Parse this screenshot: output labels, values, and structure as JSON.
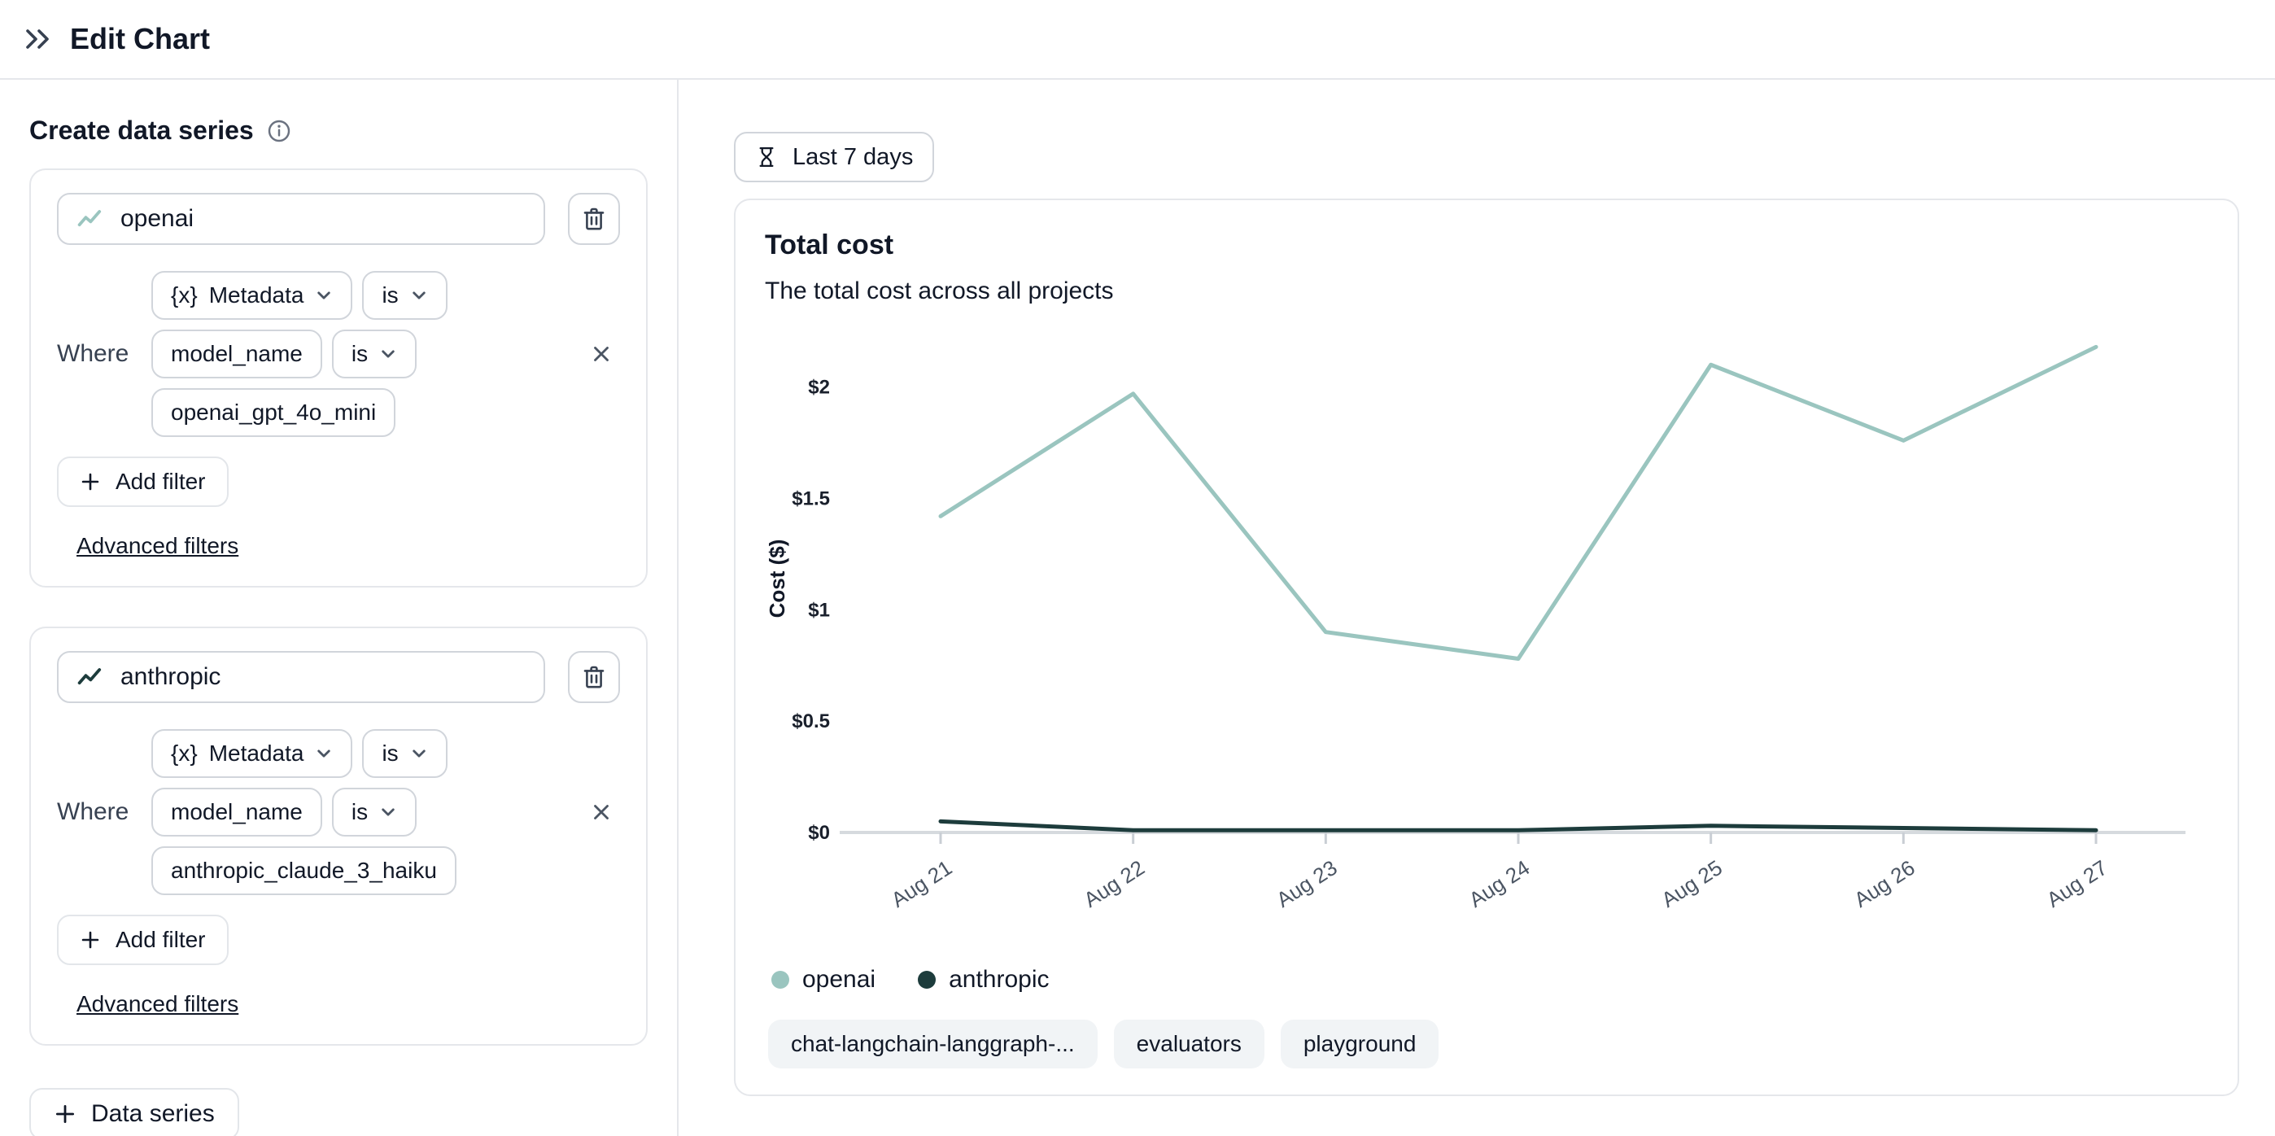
{
  "header": {
    "title": "Edit Chart"
  },
  "sidebar": {
    "heading": "Create data series",
    "labels": {
      "where": "Where",
      "add_filter": "Add filter",
      "advanced_filters": "Advanced filters",
      "data_series_button": "Data series"
    },
    "series": [
      {
        "name": "openai",
        "filter": {
          "field_prefix": "{x}",
          "field": "Metadata",
          "field_op": "is",
          "key": "model_name",
          "key_op": "is",
          "value": "openai_gpt_4o_mini"
        }
      },
      {
        "name": "anthropic",
        "filter": {
          "field_prefix": "{x}",
          "field": "Metadata",
          "field_op": "is",
          "key": "model_name",
          "key_op": "is",
          "value": "anthropic_claude_3_haiku"
        }
      }
    ]
  },
  "content": {
    "time_range_button": "Last 7 days",
    "chart_title": "Total cost",
    "chart_subtitle": "The total cost across all projects",
    "tags": [
      "chat-langchain-langgraph-...",
      "evaluators",
      "playground"
    ]
  },
  "chart_data": {
    "type": "line",
    "title": "Total cost",
    "x_categories": [
      "Aug 21",
      "Aug 22",
      "Aug 23",
      "Aug 24",
      "Aug 25",
      "Aug 26",
      "Aug 27"
    ],
    "series": [
      {
        "name": "openai",
        "color": "#9ac5bf",
        "values": [
          1.42,
          1.97,
          0.9,
          0.78,
          2.1,
          1.76,
          2.18
        ]
      },
      {
        "name": "anthropic",
        "color": "#1d3c3c",
        "values": [
          0.05,
          0.01,
          0.01,
          0.01,
          0.03,
          0.02,
          0.01
        ]
      }
    ],
    "ylabel": "Cost ($)",
    "yticks": [
      0,
      0.5,
      1,
      1.5,
      2
    ],
    "ytick_labels": [
      "$0",
      "$0.5",
      "$1",
      "$1.5",
      "$2"
    ],
    "ylim": [
      0,
      2.28
    ],
    "grid": false,
    "legend_position": "bottom"
  }
}
